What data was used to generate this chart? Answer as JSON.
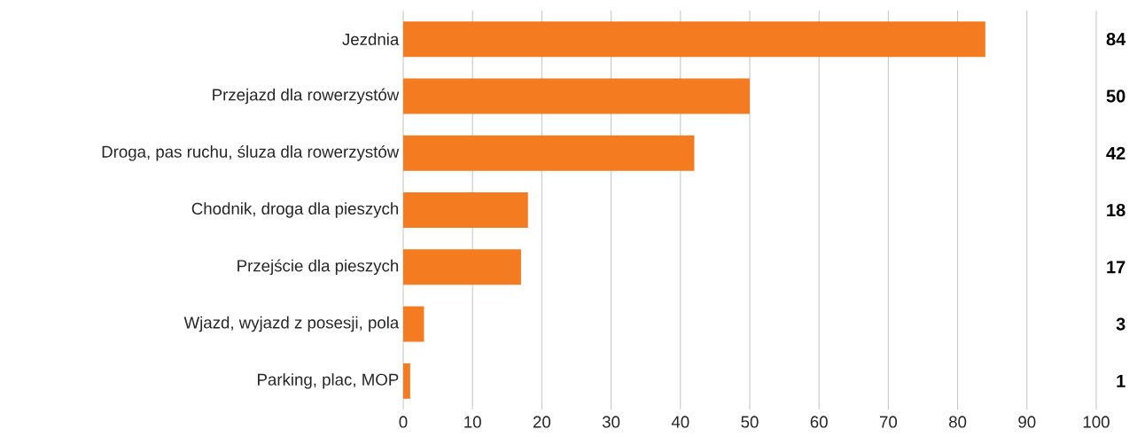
{
  "chart_data": {
    "type": "bar",
    "orientation": "horizontal",
    "categories": [
      "Jezdnia",
      "Przejazd dla rowerzystów",
      "Droga, pas ruchu, śluza dla rowerzystów",
      "Chodnik, droga dla pieszych",
      "Przejście dla pieszych",
      "Wjazd, wyjazd z posesji, pola",
      "Parking, plac, MOP"
    ],
    "values": [
      84,
      50,
      42,
      18,
      17,
      3,
      1
    ],
    "color": "#f47b20",
    "xlim": [
      0,
      100
    ],
    "xticks": [
      0,
      10,
      20,
      30,
      40,
      50,
      60,
      70,
      80,
      90,
      100
    ],
    "grid": "x",
    "data_labels": true
  }
}
